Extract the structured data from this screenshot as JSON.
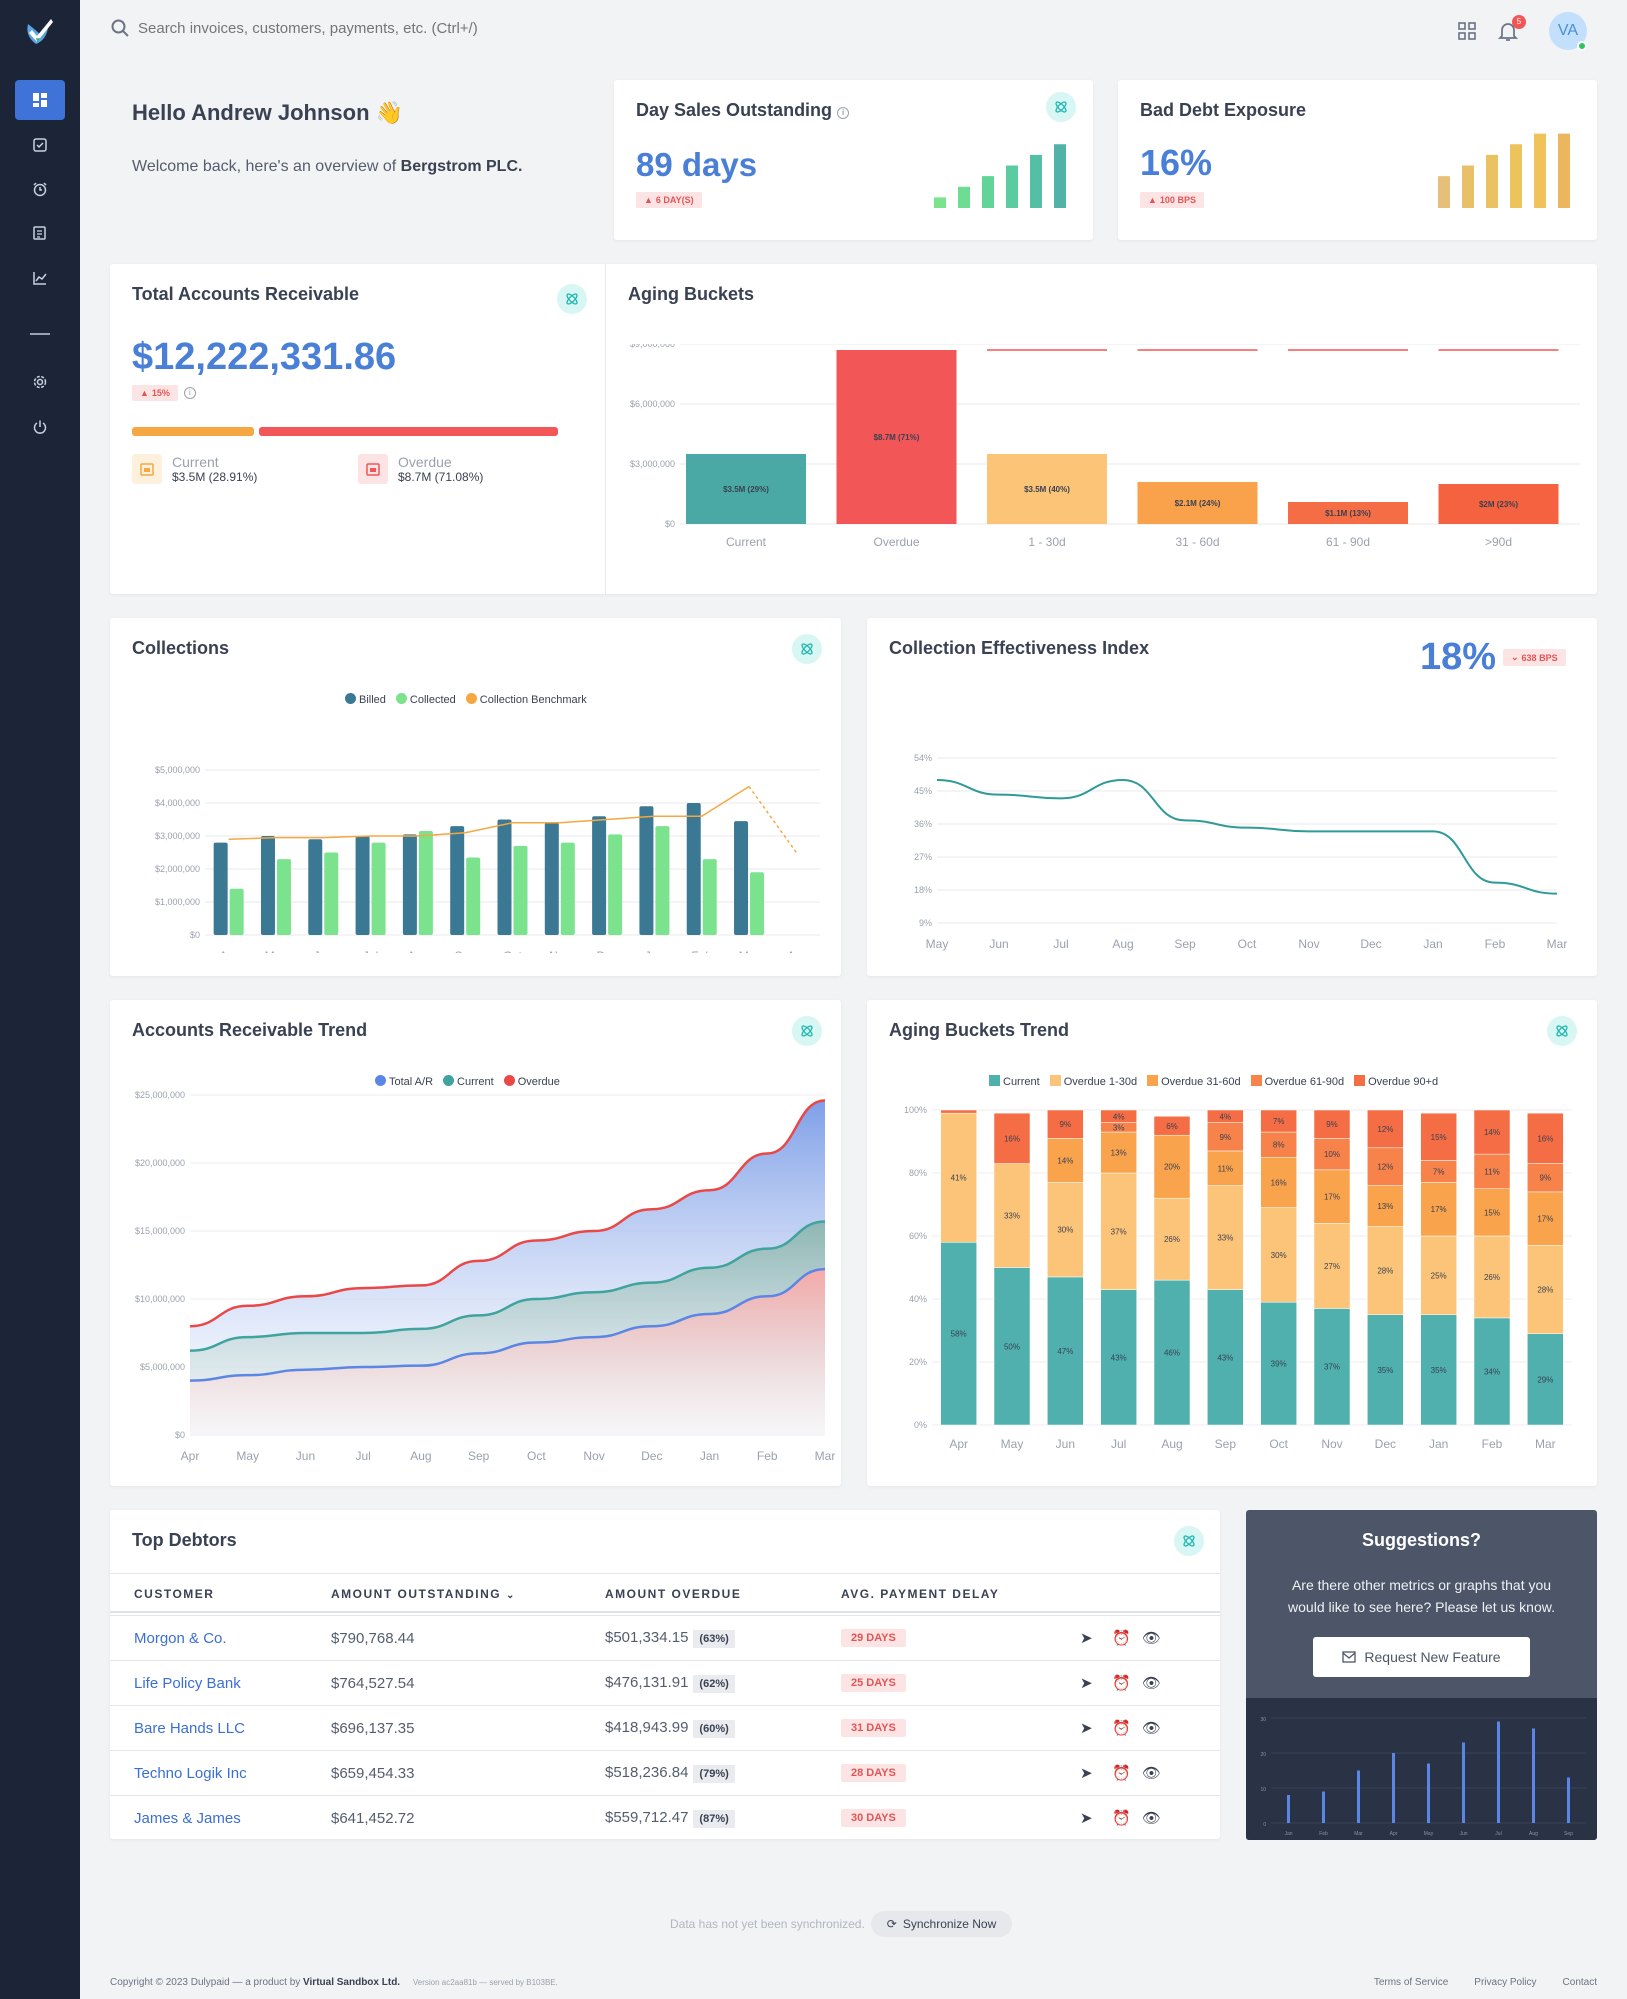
{
  "search": {
    "placeholder": "Search invoices, customers, payments, etc. (Ctrl+/)"
  },
  "header": {
    "notifications": "5",
    "avatar": "VA"
  },
  "greeting": {
    "hello": "Hello Andrew Johnson",
    "wave": "👋",
    "welcome": "Welcome back, here's an overview of ",
    "company": "Bergstrom PLC."
  },
  "dso": {
    "title": "Day Sales Outstanding",
    "value": "89 days",
    "change": "6 DAY(S)",
    "bars": [
      1,
      2,
      3,
      4,
      5,
      6,
      8
    ]
  },
  "bad_debt": {
    "title": "Bad Debt Exposure",
    "value": "16%",
    "change": "100 BPS",
    "bars": [
      3,
      4,
      5,
      6,
      7,
      7,
      8
    ]
  },
  "total_ar": {
    "title": "Total Accounts Receivable",
    "value": "$12,222,331.86",
    "change": "15%",
    "current_label": "Current",
    "current_value": "$3.5M (28.91%)",
    "current_share": 0.2891,
    "overdue_label": "Overdue",
    "overdue_value": "$8.7M (71.08%)",
    "overdue_share": 0.7108
  },
  "aging_buckets": {
    "title": "Aging Buckets"
  },
  "collections": {
    "title": "Collections"
  },
  "cei": {
    "title": "Collection Effectiveness Index",
    "value": "18%",
    "change": "638 BPS"
  },
  "ar_trend": {
    "title": "Accounts Receivable Trend"
  },
  "aging_trend": {
    "title": "Aging Buckets Trend"
  },
  "debtors": {
    "title": "Top Debtors",
    "columns": [
      "CUSTOMER",
      "AMOUNT OUTSTANDING",
      "AMOUNT OVERDUE",
      "AVG. PAYMENT DELAY"
    ],
    "rows": [
      {
        "customer": "Morgon & Co.",
        "outstanding": "$790,768.44",
        "overdue": "$501,334.15",
        "pct": "(63%)",
        "delay": "29 DAYS"
      },
      {
        "customer": "Life Policy Bank",
        "outstanding": "$764,527.54",
        "overdue": "$476,131.91",
        "pct": "(62%)",
        "delay": "25 DAYS"
      },
      {
        "customer": "Bare Hands LLC",
        "outstanding": "$696,137.35",
        "overdue": "$418,943.99",
        "pct": "(60%)",
        "delay": "31 DAYS"
      },
      {
        "customer": "Techno Logik Inc",
        "outstanding": "$659,454.33",
        "overdue": "$518,236.84",
        "pct": "(79%)",
        "delay": "28 DAYS"
      },
      {
        "customer": "James & James",
        "outstanding": "$641,452.72",
        "overdue": "$559,712.47",
        "pct": "(87%)",
        "delay": "30 DAYS"
      }
    ]
  },
  "suggestions": {
    "title": "Suggestions?",
    "text": "Are there other metrics or graphs that you would like to see here? Please let us know.",
    "button": "Request New Feature",
    "mini_labels": [
      "Jan",
      "Feb",
      "Mar",
      "Apr",
      "May",
      "Jun",
      "Jul",
      "Aug",
      "Sep"
    ],
    "mini_values": [
      8,
      9,
      15,
      20,
      17,
      23,
      29,
      27,
      13
    ],
    "mini_ticks": [
      "30",
      "20",
      "10",
      "0"
    ]
  },
  "sync": {
    "status": "Data has not yet been synchronized.",
    "button": "Synchronize Now"
  },
  "footer": {
    "copyright": "Copyright © 2023 Dulypaid — a product by ",
    "company": "Virtual Sandbox Ltd.",
    "version": "Version ac2aa81b — served by B103BE.",
    "links": [
      "Terms of Service",
      "Privacy Policy",
      "Contact"
    ]
  },
  "colors": {
    "accent": "#3f73d8",
    "teal": "#4aa9a5",
    "red": "#f25656",
    "orange": "#f5a742",
    "green": "#7be28e"
  },
  "chart_data": [
    {
      "type": "bar",
      "title": "Aging Buckets",
      "categories": [
        "Current",
        "Overdue",
        "1 - 30d",
        "31 - 60d",
        "61 - 90d",
        ">90d"
      ],
      "values": [
        3.5,
        8.7,
        3.5,
        2.1,
        1.1,
        2.0
      ],
      "labels": [
        "$3.5M (29%)",
        "$8.7M (71%)",
        "$3.5M (40%)",
        "$2.1M (24%)",
        "$1.1M (13%)",
        "$2M (23%)"
      ],
      "yticks": [
        "$9,000,000",
        "$6,000,000",
        "$3,000,000",
        "$0"
      ],
      "ylim": [
        0,
        9
      ]
    },
    {
      "type": "bar",
      "title": "Collections",
      "categories": [
        "Apr",
        "May",
        "Jun",
        "Jul",
        "Aug",
        "Sep",
        "Oct",
        "Nov",
        "Dec",
        "Jan",
        "Feb",
        "Mar",
        "Apr"
      ],
      "series": [
        {
          "name": "Billed",
          "values": [
            2.8,
            3.0,
            2.9,
            3.0,
            3.05,
            3.3,
            3.5,
            3.4,
            3.6,
            3.9,
            4.0,
            3.45,
            null
          ]
        },
        {
          "name": "Collected",
          "values": [
            1.4,
            2.3,
            2.5,
            2.8,
            3.15,
            2.35,
            2.7,
            2.8,
            3.05,
            3.3,
            2.3,
            1.9,
            null
          ]
        },
        {
          "name": "Collection Benchmark",
          "values": [
            2.9,
            2.95,
            2.95,
            3.0,
            3.0,
            3.1,
            3.4,
            3.4,
            3.5,
            3.6,
            3.6,
            4.5,
            2.5
          ]
        }
      ],
      "yticks": [
        "$5,000,000",
        "$4,000,000",
        "$3,000,000",
        "$2,000,000",
        "$1,000,000",
        "$0"
      ],
      "ylim": [
        0,
        5
      ]
    },
    {
      "type": "line",
      "title": "Collection Effectiveness Index",
      "categories": [
        "May",
        "Jun",
        "Jul",
        "Aug",
        "Sep",
        "Oct",
        "Nov",
        "Dec",
        "Jan",
        "Feb",
        "Mar"
      ],
      "values": [
        48,
        44,
        43,
        48,
        37,
        35,
        34,
        34,
        34,
        20,
        17
      ],
      "yticks": [
        "54%",
        "45%",
        "36%",
        "27%",
        "18%",
        "9%"
      ],
      "ylim": [
        9,
        54
      ]
    },
    {
      "type": "area",
      "title": "Accounts Receivable Trend",
      "categories": [
        "Apr",
        "May",
        "Jun",
        "Jul",
        "Aug",
        "Sep",
        "Oct",
        "Nov",
        "Dec",
        "Jan",
        "Feb",
        "Mar"
      ],
      "series": [
        {
          "name": "Total A/R",
          "values": [
            4.0,
            4.4,
            4.8,
            5.0,
            5.1,
            6.0,
            6.8,
            7.2,
            8.0,
            8.9,
            10.2,
            12.2
          ]
        },
        {
          "name": "Current",
          "values": [
            6.2,
            7.2,
            7.5,
            7.5,
            7.8,
            8.8,
            10.0,
            10.5,
            11.2,
            12.3,
            13.7,
            15.7
          ]
        },
        {
          "name": "Overdue",
          "values": [
            8.0,
            9.5,
            10.2,
            10.8,
            11.0,
            12.8,
            14.3,
            15.0,
            16.6,
            18.0,
            20.7,
            24.6
          ]
        }
      ],
      "yticks": [
        "$25,000,000",
        "$20,000,000",
        "$15,000,000",
        "$10,000,000",
        "$5,000,000",
        "$0"
      ],
      "ylim": [
        0,
        25
      ]
    },
    {
      "type": "bar",
      "title": "Aging Buckets Trend",
      "stacked": true,
      "categories": [
        "Apr",
        "May",
        "Jun",
        "Jul",
        "Aug",
        "Sep",
        "Oct",
        "Nov",
        "Dec",
        "Jan",
        "Feb",
        "Mar"
      ],
      "series": [
        {
          "name": "Current",
          "values": [
            58,
            50,
            47,
            43,
            46,
            43,
            39,
            37,
            35,
            35,
            34,
            29
          ]
        },
        {
          "name": "Overdue 1-30d",
          "values": [
            41,
            33,
            30,
            37,
            26,
            33,
            30,
            27,
            28,
            25,
            26,
            28
          ]
        },
        {
          "name": "Overdue 31-60d",
          "values": [
            0,
            0,
            14,
            13,
            20,
            11,
            16,
            17,
            13,
            17,
            15,
            17
          ]
        },
        {
          "name": "Overdue 61-90d",
          "values": [
            0,
            0,
            0,
            3,
            0,
            9,
            8,
            10,
            12,
            7,
            11,
            9
          ]
        },
        {
          "name": "Overdue 90+d",
          "values": [
            1,
            16,
            9,
            4,
            6,
            4,
            7,
            9,
            12,
            15,
            14,
            16
          ]
        }
      ],
      "labels": [
        [
          "58%",
          "41%",
          "",
          "",
          ""
        ],
        [
          "50%",
          "33%",
          "",
          "",
          "16%"
        ],
        [
          "47%",
          "30%",
          "14%",
          "",
          "9%"
        ],
        [
          "43%",
          "37%",
          "13%",
          "3%",
          "4%"
        ],
        [
          "46%",
          "26%",
          "20%",
          "",
          "6%"
        ],
        [
          "43%",
          "33%",
          "11%",
          "9%",
          "4%"
        ],
        [
          "39%",
          "30%",
          "16%",
          "8%",
          "7%"
        ],
        [
          "37%",
          "27%",
          "17%",
          "10%",
          "9%"
        ],
        [
          "35%",
          "28%",
          "13%",
          "12%",
          "12%"
        ],
        [
          "35%",
          "25%",
          "17%",
          "7%",
          "15%"
        ],
        [
          "34%",
          "26%",
          "15%",
          "11%",
          "14%"
        ],
        [
          "29%",
          "28%",
          "17%",
          "9%",
          "16%"
        ]
      ],
      "yticks": [
        "100%",
        "80%",
        "60%",
        "40%",
        "20%",
        "0%"
      ],
      "ylim": [
        0,
        100
      ]
    }
  ]
}
